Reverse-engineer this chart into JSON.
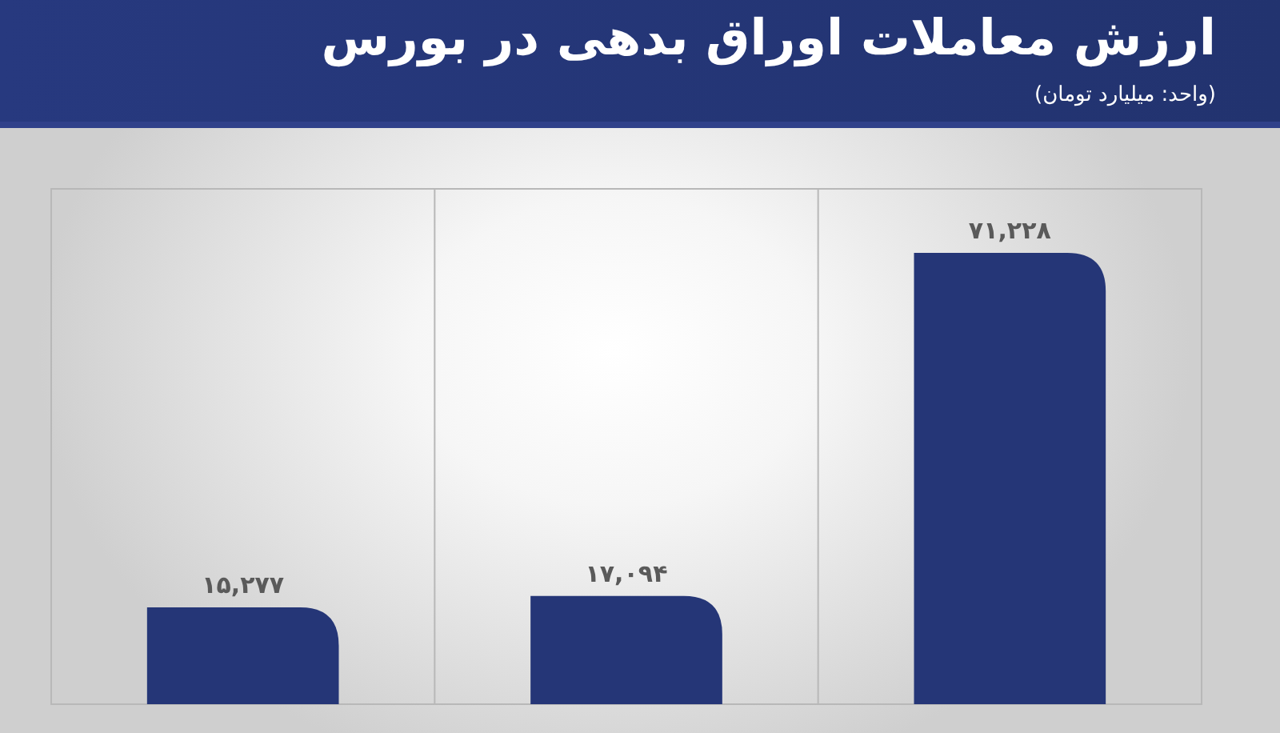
{
  "chart_data": {
    "type": "bar",
    "title": "ارزش معاملات اوراق بدهی در بورس",
    "subtitle": "(واحد: میلیارد تومان)",
    "categories": [
      null,
      null,
      null
    ],
    "values": [
      15277,
      17094,
      71228
    ],
    "value_labels": [
      "۱۵,۲۷۷",
      "۱۷,۰۹۴",
      "۷۱,۲۲۸"
    ],
    "color": "#253677",
    "grid": "x"
  }
}
